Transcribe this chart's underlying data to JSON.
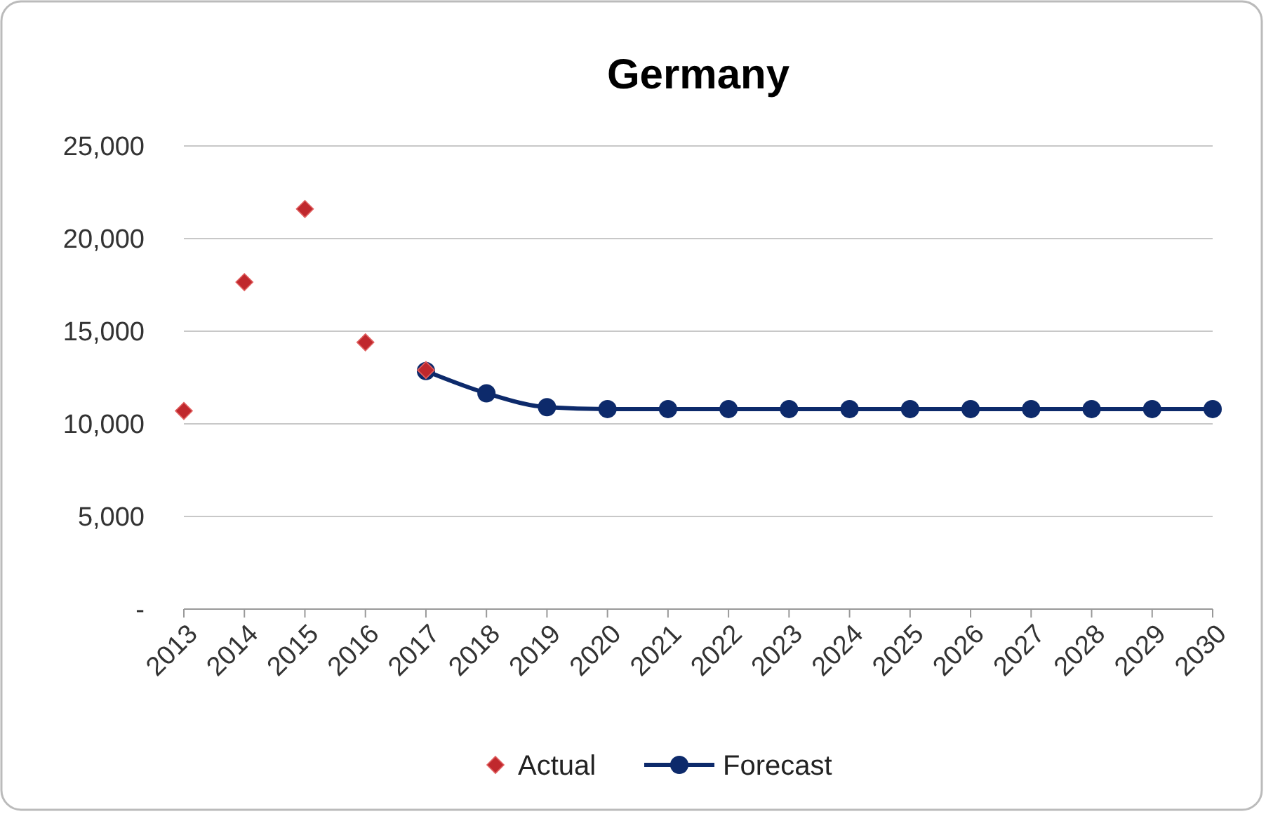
{
  "chart_data": {
    "type": "line",
    "title": "Germany",
    "categories": [
      "2013",
      "2014",
      "2015",
      "2016",
      "2017",
      "2018",
      "2019",
      "2020",
      "2021",
      "2022",
      "2023",
      "2024",
      "2025",
      "2026",
      "2027",
      "2028",
      "2029",
      "2030"
    ],
    "series": [
      {
        "name": "Actual",
        "type": "scatter",
        "marker": "diamond",
        "color": "#c0282d",
        "values": [
          10700,
          17650,
          21600,
          14400,
          12900,
          null,
          null,
          null,
          null,
          null,
          null,
          null,
          null,
          null,
          null,
          null,
          null,
          null
        ]
      },
      {
        "name": "Forecast",
        "marker": "circle",
        "color": "#0d2a6b",
        "values": [
          null,
          null,
          null,
          null,
          12850,
          11650,
          10900,
          10800,
          10800,
          10800,
          10800,
          10800,
          10800,
          10800,
          10800,
          10800,
          10800,
          10800
        ]
      }
    ],
    "ylim": [
      0,
      25000
    ],
    "yticks": [
      {
        "value": 0,
        "label": "-"
      },
      {
        "value": 5000,
        "label": "5,000"
      },
      {
        "value": 10000,
        "label": "10,000"
      },
      {
        "value": 15000,
        "label": "15,000"
      },
      {
        "value": 20000,
        "label": "20,000"
      },
      {
        "value": 25000,
        "label": "25,000"
      }
    ],
    "grid": "y",
    "legend": "bottom"
  }
}
